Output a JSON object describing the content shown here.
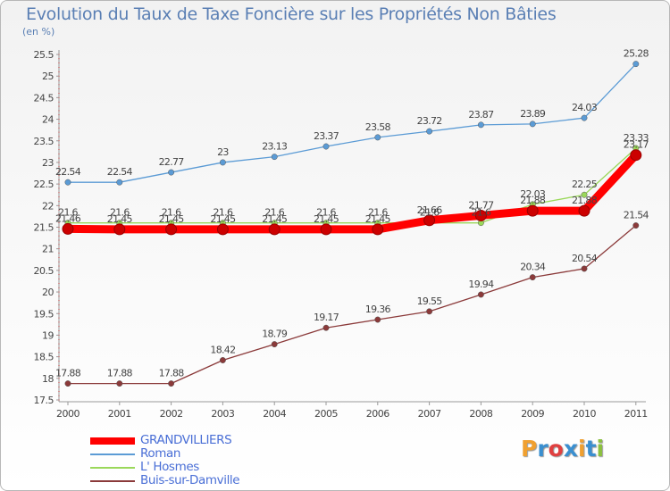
{
  "chart_data": {
    "type": "line",
    "title": "Evolution du Taux de Taxe Foncière sur les Propriétés Non Bâties",
    "ylabel": "(en %)",
    "xlabel": "",
    "ylim": [
      17.5,
      25.5
    ],
    "yticks": [
      "17.5",
      "18",
      "18.5",
      "19",
      "19.5",
      "20",
      "20.5",
      "21",
      "21.5",
      "22",
      "22.5",
      "23",
      "23.5",
      "24",
      "24.5",
      "25",
      "25.5"
    ],
    "categories": [
      "2000",
      "2001",
      "2002",
      "2003",
      "2004",
      "2005",
      "2006",
      "2007",
      "2008",
      "2009",
      "2010",
      "2011"
    ],
    "series": [
      {
        "name": "GRANDVILLIERS",
        "color": "#ff0000",
        "values": [
          21.46,
          21.45,
          21.45,
          21.45,
          21.45,
          21.45,
          21.45,
          21.66,
          21.77,
          21.88,
          21.88,
          23.17
        ],
        "labels": [
          "21.46",
          "21.45",
          "21.45",
          "21.45",
          "21.45",
          "21.45",
          "21.45",
          "21.66",
          "21.77",
          "21.88",
          "21.88",
          "23.17"
        ]
      },
      {
        "name": "Roman",
        "color": "#5b9bd5",
        "values": [
          22.54,
          22.54,
          22.77,
          23,
          23.13,
          23.37,
          23.58,
          23.72,
          23.87,
          23.89,
          24.03,
          25.28
        ],
        "labels": [
          "22.54",
          "22.54",
          "22.77",
          "23",
          "23.13",
          "23.37",
          "23.58",
          "23.72",
          "23.87",
          "23.89",
          "24.03",
          "25.28"
        ]
      },
      {
        "name": "L' Hosmes",
        "color": "#9ad85a",
        "values": [
          21.6,
          21.6,
          21.6,
          21.6,
          21.6,
          21.6,
          21.6,
          21.6,
          21.6,
          22.03,
          22.25,
          23.33
        ],
        "labels": [
          "21.6",
          "21.6",
          "21.6",
          "21.6",
          "21.6",
          "21.6",
          "21.6",
          "21.6",
          "21.6",
          "22.03",
          "22.25",
          "23.33"
        ]
      },
      {
        "name": "Buis-sur-Damville",
        "color": "#8b3a3a",
        "values": [
          17.88,
          17.88,
          17.88,
          18.42,
          18.79,
          19.17,
          19.36,
          19.55,
          19.94,
          20.34,
          20.54,
          21.54
        ],
        "labels": [
          "17.88",
          "17.88",
          "17.88",
          "18.42",
          "18.79",
          "19.17",
          "19.36",
          "19.55",
          "19.94",
          "20.34",
          "20.54",
          "21.54"
        ]
      }
    ],
    "legend": {
      "position": "bottom-left"
    },
    "grid": false
  },
  "logo": {
    "text": "Proxiti",
    "letters": [
      "P",
      "r",
      "o",
      "x",
      "i",
      "t",
      "i"
    ],
    "colors": [
      "#f0a030",
      "#3a8fd0",
      "#e04040",
      "#3a8fd0",
      "#f0a030",
      "#3a8fd0",
      "#8cc040"
    ]
  }
}
